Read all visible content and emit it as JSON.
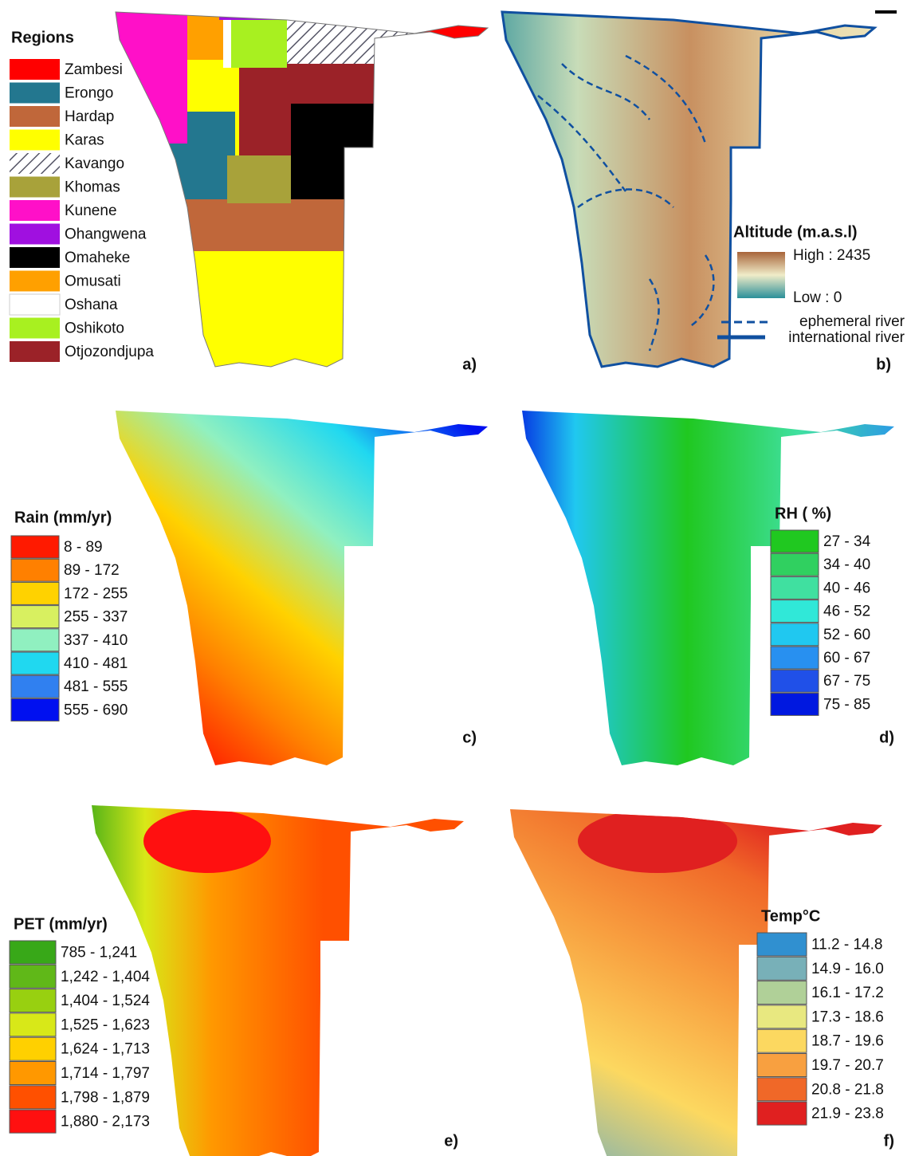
{
  "panels": [
    {
      "label": "a)",
      "legend": {
        "title": "Regions",
        "items": [
          {
            "name": "Zambesi",
            "color": "#ff0000"
          },
          {
            "name": "Erongo",
            "color": "#23778f"
          },
          {
            "name": "Hardap",
            "color": "#c0673a"
          },
          {
            "name": "Karas",
            "color": "#ffff00"
          },
          {
            "name": "Kavango",
            "color": "hatch"
          },
          {
            "name": "Khomas",
            "color": "#a8a23a"
          },
          {
            "name": "Kunene",
            "color": "#ff10c8"
          },
          {
            "name": "Ohangwena",
            "color": "#a010e0"
          },
          {
            "name": "Omaheke",
            "color": "#000000"
          },
          {
            "name": "Omusati",
            "color": "#ffa000"
          },
          {
            "name": "Oshana",
            "color": "#ffffff"
          },
          {
            "name": "Oshikoto",
            "color": "#a8f020"
          },
          {
            "name": "Otjozondjupa",
            "color": "#9b2228"
          }
        ]
      }
    },
    {
      "label": "b)",
      "legend": {
        "title": "Altitude (m.a.s.l)",
        "high": "High : 2435",
        "low": "Low : 0",
        "ephemeral": "ephemeral river",
        "international": "international river"
      }
    },
    {
      "label": "c)",
      "legend": {
        "title": "Rain (mm/yr)",
        "items": [
          {
            "name": "8 - 89",
            "color": "#ff1a00"
          },
          {
            "name": "89 - 172",
            "color": "#ff8000"
          },
          {
            "name": "172 - 255",
            "color": "#ffd200"
          },
          {
            "name": "255 - 337",
            "color": "#d8f060"
          },
          {
            "name": "337 - 410",
            "color": "#90f0c0"
          },
          {
            "name": "410 - 481",
            "color": "#20d8f0"
          },
          {
            "name": "481 - 555",
            "color": "#3080f0"
          },
          {
            "name": "555 - 690",
            "color": "#0010f0"
          }
        ]
      }
    },
    {
      "label": "d)",
      "legend": {
        "title": "RH ( %)",
        "items": [
          {
            "name": "27 - 34",
            "color": "#20c820"
          },
          {
            "name": "34 - 40",
            "color": "#30d060"
          },
          {
            "name": "40 - 46",
            "color": "#40e0a0"
          },
          {
            "name": "46 - 52",
            "color": "#30e8d8"
          },
          {
            "name": "52 - 60",
            "color": "#20c8f0"
          },
          {
            "name": "60 - 67",
            "color": "#2890f0"
          },
          {
            "name": "67 - 75",
            "color": "#2050e8"
          },
          {
            "name": "75 - 85",
            "color": "#0018e0"
          }
        ]
      }
    },
    {
      "label": "e)",
      "legend": {
        "title": "PET (mm/yr)",
        "items": [
          {
            "name": "785 - 1,241",
            "color": "#38a818"
          },
          {
            "name": "1,242 - 1,404",
            "color": "#60b818"
          },
          {
            "name": "1,404 - 1,524",
            "color": "#98d010"
          },
          {
            "name": "1,525 - 1,623",
            "color": "#d8e818"
          },
          {
            "name": "1,624 - 1,713",
            "color": "#ffd000"
          },
          {
            "name": "1,714 - 1,797",
            "color": "#ff9800"
          },
          {
            "name": "1,798 - 1,879",
            "color": "#ff5000"
          },
          {
            "name": "1,880 - 2,173",
            "color": "#ff1010"
          }
        ]
      }
    },
    {
      "label": "f)",
      "legend": {
        "title": "Temp°C",
        "items": [
          {
            "name": "11.2 - 14.8",
            "color": "#3090d0"
          },
          {
            "name": "14.9 - 16.0",
            "color": "#78b0b8"
          },
          {
            "name": "16.1 - 17.2",
            "color": "#b0d098"
          },
          {
            "name": "17.3 - 18.6",
            "color": "#e8e880"
          },
          {
            "name": "18.7 - 19.6",
            "color": "#fcd860"
          },
          {
            "name": "19.7 - 20.7",
            "color": "#f8a040"
          },
          {
            "name": "20.8 - 21.8",
            "color": "#f06828"
          },
          {
            "name": "21.9 - 23.8",
            "color": "#e02020"
          }
        ]
      }
    }
  ]
}
